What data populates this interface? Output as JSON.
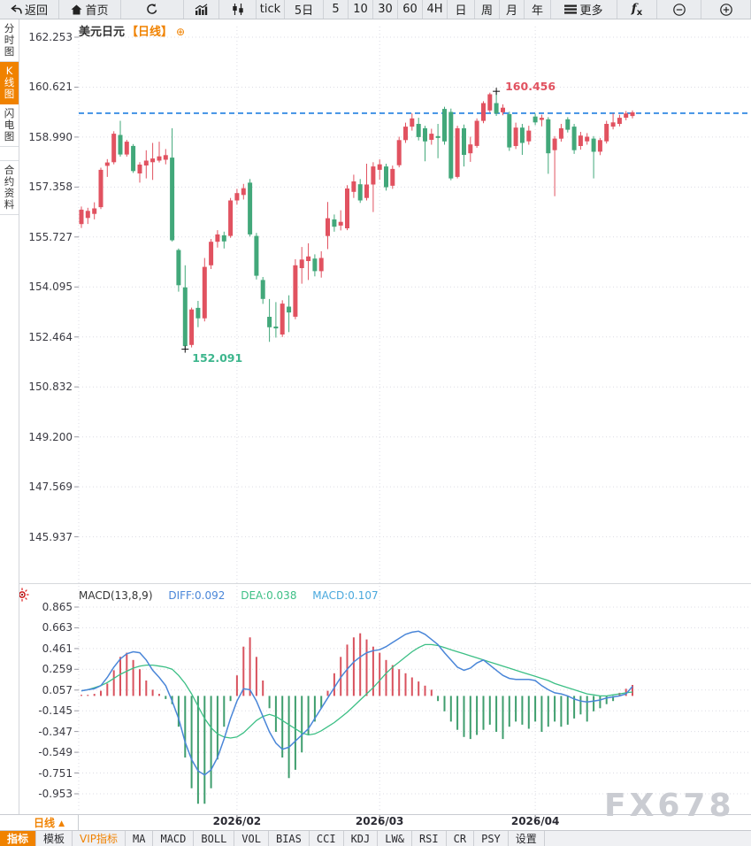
{
  "app": {
    "watermark": "FX678"
  },
  "colors": {
    "accent_orange": "#f08200",
    "candle_up_red": "#e15260",
    "candle_down_green": "#42a87a",
    "current_price_blue": "#1e7fe0",
    "diff_blue": "#4a86d8",
    "dea_green": "#3cbf85",
    "macd_label_cyan": "#49a8dd",
    "hist_red": "#d9525e",
    "hist_green": "#3f9e6e",
    "watermark_gray": "#caccd2"
  },
  "toolbar": {
    "items": [
      {
        "name": "back-button",
        "label": "返回",
        "icon": "back-icon"
      },
      {
        "name": "home-button",
        "label": "首页",
        "icon": "home-icon"
      },
      {
        "name": "refresh-button",
        "icon": "refresh-icon"
      },
      {
        "name": "line-chart-button",
        "icon": "line-chart-icon"
      },
      {
        "name": "candle-chart-button",
        "icon": "candle-chart-icon"
      },
      {
        "name": "tick-button",
        "label": "tick"
      },
      {
        "name": "period-5d-button",
        "label": "5日"
      },
      {
        "name": "period-5-button",
        "label": "5"
      },
      {
        "name": "period-10-button",
        "label": "10"
      },
      {
        "name": "period-30-button",
        "label": "30"
      },
      {
        "name": "period-60-button",
        "label": "60"
      },
      {
        "name": "period-4h-button",
        "label": "4H"
      },
      {
        "name": "period-day-button",
        "label": "日"
      },
      {
        "name": "period-week-button",
        "label": "周"
      },
      {
        "name": "period-month-button",
        "label": "月"
      },
      {
        "name": "period-year-button",
        "label": "年"
      },
      {
        "name": "more-button",
        "label": "更多",
        "icon": "menu-icon"
      },
      {
        "name": "formula-button",
        "icon": "fx-icon"
      },
      {
        "name": "zoom-out-button",
        "icon": "zoom-out-icon"
      },
      {
        "name": "zoom-in-button",
        "icon": "zoom-in-icon"
      }
    ]
  },
  "sidebar": {
    "items": [
      {
        "name": "tab-time-share-chart",
        "label": "分时图",
        "active": false,
        "gap": false
      },
      {
        "name": "tab-kline-chart",
        "label": "K线图",
        "active": true,
        "gap": false
      },
      {
        "name": "tab-flash-chart",
        "label": "闪电图",
        "active": false,
        "gap": false
      },
      {
        "name": "tab-contract-info",
        "label": "合约资料",
        "active": false,
        "gap": true
      }
    ]
  },
  "chart_header": {
    "symbol": "美元日元",
    "period_tag": "【日线】",
    "add_icon": "⊕"
  },
  "bottom_axis": {
    "period_label": "日线",
    "period_arrow": "▲",
    "x_ticks": [
      {
        "label": "2026/02",
        "index": 24
      },
      {
        "label": "2026/03",
        "index": 46
      },
      {
        "label": "2026/04",
        "index": 70
      }
    ]
  },
  "bottom_tabs": {
    "items": [
      {
        "name": "tab-indicator",
        "label": "指标",
        "active": true,
        "vip": false
      },
      {
        "name": "tab-template",
        "label": "模板",
        "active": false,
        "vip": false
      },
      {
        "name": "tab-vip-indicator",
        "label": "VIP指标",
        "active": false,
        "vip": true
      },
      {
        "name": "tab-ma",
        "label": "MA",
        "active": false,
        "vip": false
      },
      {
        "name": "tab-macd",
        "label": "MACD",
        "active": false,
        "vip": false
      },
      {
        "name": "tab-boll",
        "label": "BOLL",
        "active": false,
        "vip": false
      },
      {
        "name": "tab-vol",
        "label": "VOL",
        "active": false,
        "vip": false
      },
      {
        "name": "tab-bias",
        "label": "BIAS",
        "active": false,
        "vip": false
      },
      {
        "name": "tab-cci",
        "label": "CCI",
        "active": false,
        "vip": false
      },
      {
        "name": "tab-kdj",
        "label": "KDJ",
        "active": false,
        "vip": false
      },
      {
        "name": "tab-lw",
        "label": "LW&",
        "active": false,
        "vip": false
      },
      {
        "name": "tab-rsi",
        "label": "RSI",
        "active": false,
        "vip": false
      },
      {
        "name": "tab-cr",
        "label": "CR",
        "active": false,
        "vip": false
      },
      {
        "name": "tab-psy",
        "label": "PSY",
        "active": false,
        "vip": false
      },
      {
        "name": "tab-settings",
        "label": "设置",
        "active": false,
        "vip": false
      }
    ]
  },
  "chart_data": [
    {
      "type": "candlestick",
      "title": "美元日元 日线",
      "y_axis_labels": [
        "162.253",
        "160.621",
        "158.990",
        "157.358",
        "155.727",
        "154.095",
        "152.464",
        "150.832",
        "149.200",
        "147.569",
        "145.937"
      ],
      "current_price": 159.77,
      "high_annotation": {
        "label": "160.456",
        "value": 160.456,
        "candle_index": 64
      },
      "low_annotation": {
        "label": "152.091",
        "value": 152.091,
        "candle_index": 16
      },
      "candles": [
        [
          156.15,
          156.62,
          156.02,
          156.72
        ],
        [
          156.35,
          156.58,
          156.15,
          156.68
        ],
        [
          156.48,
          156.66,
          156.3,
          156.86
        ],
        [
          156.7,
          157.92,
          156.64,
          157.99
        ],
        [
          158.05,
          158.16,
          157.69,
          158.27
        ],
        [
          158.17,
          159.1,
          158.1,
          159.18
        ],
        [
          159.06,
          158.42,
          158.35,
          159.52
        ],
        [
          158.42,
          158.84,
          158.35,
          158.9
        ],
        [
          158.7,
          157.88,
          157.82,
          158.76
        ],
        [
          157.8,
          158.09,
          157.5,
          158.17
        ],
        [
          158.06,
          158.22,
          157.64,
          158.56
        ],
        [
          158.17,
          158.29,
          157.59,
          158.8
        ],
        [
          158.22,
          158.36,
          158.16,
          158.84
        ],
        [
          158.25,
          158.4,
          158.1,
          158.6
        ],
        [
          158.32,
          155.62,
          155.58,
          159.28
        ],
        [
          155.3,
          154.15,
          153.94,
          155.35
        ],
        [
          154.08,
          152.16,
          152.091,
          154.8
        ],
        [
          152.2,
          153.36,
          152.12,
          153.42
        ],
        [
          153.41,
          153.07,
          152.78,
          153.64
        ],
        [
          153.07,
          154.75,
          152.97,
          155.04
        ],
        [
          154.8,
          155.57,
          154.68,
          155.66
        ],
        [
          155.57,
          155.81,
          155.38,
          155.95
        ],
        [
          155.78,
          155.58,
          155.35,
          155.9
        ],
        [
          155.76,
          156.92,
          155.7,
          157.0
        ],
        [
          156.92,
          157.16,
          156.78,
          157.3
        ],
        [
          157.1,
          157.32,
          156.95,
          157.46
        ],
        [
          157.5,
          155.81,
          155.74,
          157.62
        ],
        [
          155.76,
          154.46,
          154.34,
          155.86
        ],
        [
          154.32,
          153.7,
          153.54,
          154.42
        ],
        [
          153.12,
          152.78,
          152.3,
          153.7
        ],
        [
          152.8,
          152.74,
          152.44,
          153.6
        ],
        [
          152.54,
          153.55,
          152.46,
          153.66
        ],
        [
          153.45,
          153.26,
          152.62,
          153.82
        ],
        [
          153.12,
          154.8,
          153.04,
          155.0
        ],
        [
          154.71,
          154.99,
          154.2,
          155.4
        ],
        [
          154.94,
          155.09,
          154.32,
          155.52
        ],
        [
          155.02,
          154.61,
          154.44,
          155.16
        ],
        [
          154.61,
          155.04,
          154.4,
          155.26
        ],
        [
          155.76,
          156.34,
          155.33,
          156.87
        ],
        [
          156.3,
          156.06,
          155.9,
          156.46
        ],
        [
          156.1,
          156.22,
          155.94,
          156.6
        ],
        [
          156.01,
          157.31,
          155.95,
          157.42
        ],
        [
          157.2,
          157.54,
          157.0,
          157.76
        ],
        [
          157.45,
          156.92,
          156.84,
          157.62
        ],
        [
          157.0,
          157.44,
          156.92,
          158.12
        ],
        [
          157.44,
          158.03,
          156.54,
          158.17
        ],
        [
          157.92,
          158.1,
          157.6,
          158.26
        ],
        [
          158.03,
          157.35,
          157.24,
          158.12
        ],
        [
          157.4,
          157.95,
          157.3,
          158.06
        ],
        [
          158.07,
          158.89,
          158.0,
          159.0
        ],
        [
          158.89,
          159.33,
          158.8,
          159.46
        ],
        [
          159.33,
          159.6,
          159.2,
          159.76
        ],
        [
          159.42,
          158.99,
          158.88,
          159.62
        ],
        [
          159.28,
          158.85,
          158.2,
          159.36
        ],
        [
          158.9,
          159.1,
          158.74,
          159.26
        ],
        [
          159.02,
          158.96,
          158.3,
          159.42
        ],
        [
          159.91,
          158.85,
          158.74,
          159.98
        ],
        [
          159.81,
          157.64,
          157.58,
          159.92
        ],
        [
          157.69,
          159.28,
          157.64,
          159.36
        ],
        [
          159.28,
          158.41,
          158.03,
          159.4
        ],
        [
          158.46,
          158.75,
          158.18,
          159.0
        ],
        [
          158.7,
          159.52,
          158.64,
          159.6
        ],
        [
          159.52,
          160.1,
          159.44,
          160.16
        ],
        [
          159.86,
          160.39,
          159.8,
          160.44
        ],
        [
          160.1,
          159.76,
          159.68,
          160.456
        ],
        [
          159.8,
          159.95,
          159.7,
          160.06
        ],
        [
          159.74,
          158.65,
          158.54,
          159.82
        ],
        [
          158.7,
          159.3,
          158.6,
          159.46
        ],
        [
          159.3,
          158.8,
          158.41,
          159.42
        ],
        [
          158.85,
          159.2,
          158.74,
          159.36
        ],
        [
          159.66,
          159.47,
          159.38,
          159.76
        ],
        [
          159.55,
          159.62,
          159.34,
          159.72
        ],
        [
          159.57,
          158.46,
          157.79,
          159.64
        ],
        [
          158.56,
          158.94,
          157.06,
          159.02
        ],
        [
          158.94,
          159.28,
          158.84,
          159.42
        ],
        [
          159.57,
          159.23,
          159.14,
          159.64
        ],
        [
          159.33,
          158.56,
          158.44,
          159.42
        ],
        [
          158.7,
          159.04,
          158.58,
          159.16
        ],
        [
          158.85,
          159.0,
          158.74,
          159.12
        ],
        [
          158.94,
          158.51,
          157.64,
          159.02
        ],
        [
          158.51,
          158.89,
          158.4,
          158.96
        ],
        [
          158.85,
          159.42,
          158.78,
          159.52
        ],
        [
          159.33,
          159.47,
          159.24,
          159.76
        ],
        [
          159.42,
          159.62,
          159.34,
          159.72
        ],
        [
          159.62,
          159.76,
          159.54,
          159.84
        ],
        [
          159.68,
          159.8,
          159.6,
          159.86
        ]
      ]
    },
    {
      "type": "macd",
      "params_label": "MACD(13,8,9)",
      "diff_label": "DIFF:0.092",
      "dea_label": "DEA:0.038",
      "macd_label": "MACD:0.107",
      "y_axis_labels": [
        "0.865",
        "0.663",
        "0.461",
        "0.259",
        "0.057",
        "-0.145",
        "-0.347",
        "-0.549",
        "-0.751",
        "-0.953"
      ],
      "diff": [
        0.05,
        0.06,
        0.07,
        0.1,
        0.18,
        0.28,
        0.36,
        0.41,
        0.43,
        0.42,
        0.35,
        0.25,
        0.18,
        0.1,
        -0.05,
        -0.22,
        -0.45,
        -0.62,
        -0.73,
        -0.77,
        -0.72,
        -0.6,
        -0.42,
        -0.22,
        -0.05,
        0.07,
        0.06,
        -0.05,
        -0.2,
        -0.35,
        -0.46,
        -0.52,
        -0.5,
        -0.44,
        -0.38,
        -0.32,
        -0.22,
        -0.12,
        -0.02,
        0.08,
        0.18,
        0.26,
        0.33,
        0.38,
        0.42,
        0.44,
        0.45,
        0.48,
        0.52,
        0.56,
        0.6,
        0.62,
        0.63,
        0.6,
        0.55,
        0.5,
        0.42,
        0.35,
        0.28,
        0.25,
        0.27,
        0.32,
        0.35,
        0.3,
        0.25,
        0.2,
        0.17,
        0.16,
        0.16,
        0.16,
        0.15,
        0.1,
        0.06,
        0.03,
        0.02,
        0.0,
        -0.03,
        -0.05,
        -0.06,
        -0.05,
        -0.04,
        -0.02,
        -0.01,
        0.0,
        0.02,
        0.092
      ],
      "dea": [
        0.05,
        0.06,
        0.08,
        0.1,
        0.13,
        0.17,
        0.21,
        0.24,
        0.27,
        0.29,
        0.3,
        0.3,
        0.29,
        0.28,
        0.26,
        0.2,
        0.12,
        0.02,
        -0.1,
        -0.22,
        -0.31,
        -0.37,
        -0.4,
        -0.41,
        -0.4,
        -0.36,
        -0.3,
        -0.24,
        -0.2,
        -0.18,
        -0.2,
        -0.24,
        -0.28,
        -0.32,
        -0.36,
        -0.38,
        -0.37,
        -0.34,
        -0.3,
        -0.26,
        -0.21,
        -0.16,
        -0.1,
        -0.04,
        0.02,
        0.08,
        0.15,
        0.22,
        0.28,
        0.33,
        0.38,
        0.43,
        0.47,
        0.5,
        0.5,
        0.49,
        0.47,
        0.45,
        0.43,
        0.41,
        0.39,
        0.37,
        0.35,
        0.33,
        0.31,
        0.29,
        0.27,
        0.25,
        0.23,
        0.21,
        0.19,
        0.17,
        0.15,
        0.12,
        0.1,
        0.08,
        0.06,
        0.04,
        0.02,
        0.01,
        0.0,
        0.0,
        0.01,
        0.02,
        0.03,
        0.038
      ],
      "hist": [
        0.01,
        0.01,
        0.02,
        0.05,
        0.12,
        0.25,
        0.38,
        0.42,
        0.35,
        0.26,
        0.15,
        0.06,
        0.02,
        -0.03,
        -0.08,
        -0.3,
        -0.6,
        -0.9,
        -1.05,
        -1.05,
        -0.9,
        -0.62,
        -0.3,
        -0.05,
        0.2,
        0.48,
        0.57,
        0.38,
        0.15,
        -0.12,
        -0.35,
        -0.6,
        -0.8,
        -0.72,
        -0.55,
        -0.38,
        -0.25,
        -0.12,
        0.05,
        0.22,
        0.38,
        0.5,
        0.57,
        0.61,
        0.55,
        0.48,
        0.42,
        0.35,
        0.3,
        0.26,
        0.22,
        0.18,
        0.14,
        0.1,
        0.06,
        -0.05,
        -0.15,
        -0.25,
        -0.33,
        -0.4,
        -0.42,
        -0.38,
        -0.33,
        -0.28,
        -0.35,
        -0.42,
        -0.3,
        -0.25,
        -0.28,
        -0.32,
        -0.25,
        -0.35,
        -0.3,
        -0.25,
        -0.3,
        -0.28,
        -0.22,
        -0.18,
        -0.25,
        -0.15,
        -0.12,
        -0.08,
        -0.05,
        0.03,
        0.07,
        0.107
      ]
    }
  ]
}
